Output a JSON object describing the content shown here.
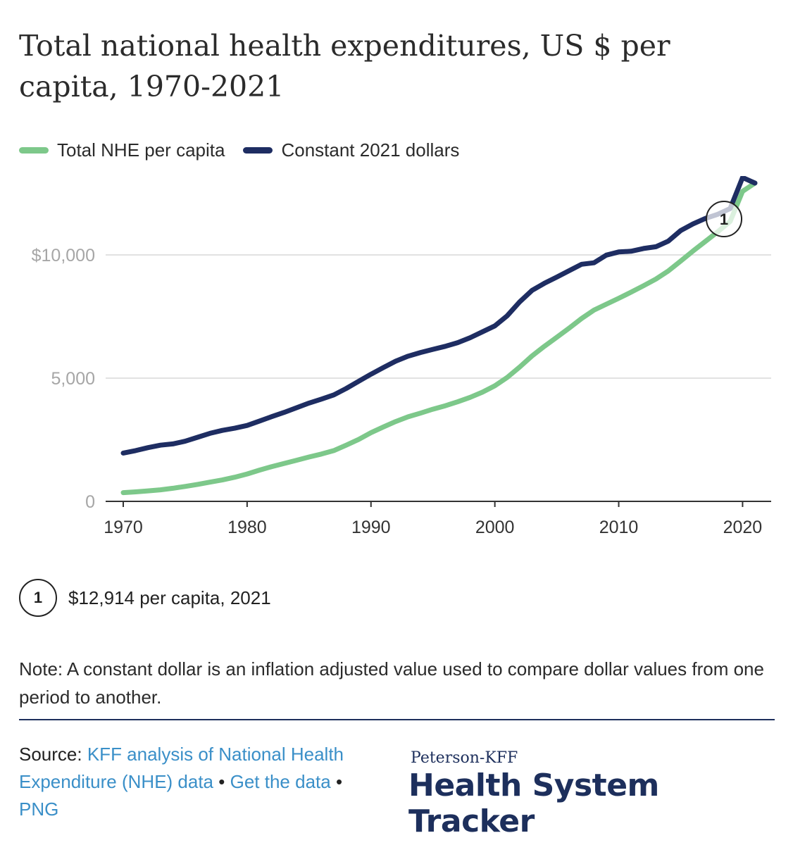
{
  "title": "Total national health expenditures, US $ per capita, 1970-2021",
  "colors": {
    "nhe": "#7dc88a",
    "constant": "#1e2d62",
    "grid": "#e2e2e2",
    "axis": "#333333",
    "tick_label": "#a6a6a6",
    "link": "#3a8fc8",
    "brand": "#1d2f5c"
  },
  "legend": {
    "nhe_label": "Total NHE per capita",
    "constant_label": "Constant 2021 dollars"
  },
  "footnote": {
    "marker": "1",
    "text": "$12,914 per capita, 2021"
  },
  "note": "Note: A constant dollar is an inflation adjusted value used to compare dollar values from one period to another.",
  "source": {
    "label": "Source:",
    "link_analysis": "KFF analysis of National Health Expenditure (NHE) data",
    "sep1": "•",
    "link_data": "Get the data",
    "sep2": "•",
    "link_png": "PNG"
  },
  "brand": {
    "top": "Peterson-KFF",
    "main": "Health System Tracker"
  },
  "chart_data": {
    "type": "line",
    "x": [
      1970,
      1971,
      1972,
      1973,
      1974,
      1975,
      1976,
      1977,
      1978,
      1979,
      1980,
      1981,
      1982,
      1983,
      1984,
      1985,
      1986,
      1987,
      1988,
      1989,
      1990,
      1991,
      1992,
      1993,
      1994,
      1995,
      1996,
      1997,
      1998,
      1999,
      2000,
      2001,
      2002,
      2003,
      2004,
      2005,
      2006,
      2007,
      2008,
      2009,
      2010,
      2011,
      2012,
      2013,
      2014,
      2015,
      2016,
      2017,
      2018,
      2019,
      2020,
      2021
    ],
    "series": [
      {
        "name": "Total NHE per capita",
        "color_key": "nhe",
        "values": [
          355,
          385,
          425,
          470,
          530,
          605,
          690,
          780,
          870,
          980,
          1110,
          1270,
          1410,
          1540,
          1670,
          1800,
          1920,
          2060,
          2280,
          2510,
          2790,
          3020,
          3240,
          3430,
          3580,
          3740,
          3880,
          4040,
          4220,
          4430,
          4690,
          5030,
          5450,
          5900,
          6290,
          6660,
          7030,
          7420,
          7760,
          8000,
          8240,
          8490,
          8750,
          9020,
          9350,
          9750,
          10160,
          10550,
          10940,
          11360,
          12580,
          12914
        ]
      },
      {
        "name": "Constant 2021 dollars",
        "color_key": "constant",
        "values": [
          1960,
          2060,
          2180,
          2280,
          2330,
          2440,
          2600,
          2760,
          2880,
          2970,
          3080,
          3260,
          3440,
          3610,
          3800,
          3990,
          4150,
          4320,
          4580,
          4870,
          5160,
          5430,
          5690,
          5890,
          6040,
          6170,
          6290,
          6440,
          6640,
          6880,
          7120,
          7530,
          8090,
          8560,
          8850,
          9100,
          9360,
          9620,
          9680,
          9990,
          10120,
          10150,
          10260,
          10330,
          10560,
          10990,
          11260,
          11480,
          11650,
          11880,
          13140,
          12914
        ]
      }
    ],
    "y_ticks": [
      0,
      5000,
      10000
    ],
    "y_tick_labels": [
      "0",
      "5,000",
      "$10,000"
    ],
    "x_ticks": [
      1970,
      1980,
      1990,
      2000,
      2010,
      2020
    ],
    "xlim": [
      1970,
      2021
    ],
    "ylim": [
      0,
      13200
    ],
    "grid": true,
    "annotation": {
      "marker": "1",
      "x": 2018.5
    }
  }
}
